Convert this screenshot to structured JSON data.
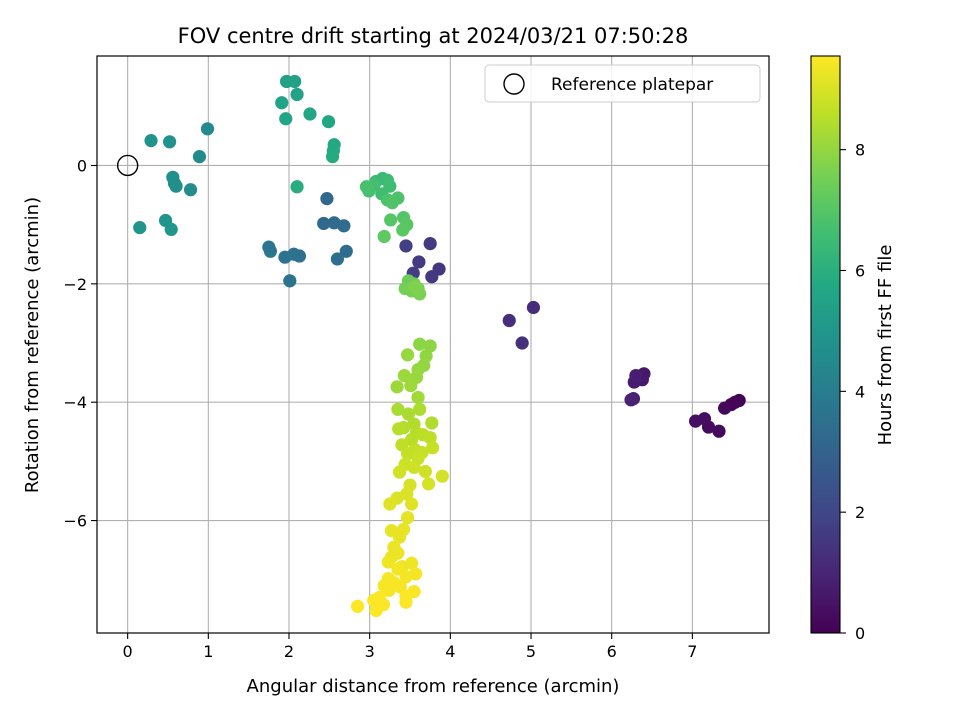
{
  "chart_data": {
    "type": "scatter",
    "title": "FOV centre drift starting at 2024/03/21 07:50:28",
    "xlabel": "Angular distance from reference (arcmin)",
    "ylabel": "Rotation from reference (arcmin)",
    "colorbar_label": "Hours from first FF file",
    "colormap": "viridis",
    "xlim": [
      -0.38,
      7.95
    ],
    "ylim": [
      -7.9,
      1.85
    ],
    "clim": [
      0,
      9.55
    ],
    "xticks": [
      "0",
      "1",
      "2",
      "3",
      "4",
      "5",
      "6",
      "7"
    ],
    "yticks": [
      "−6",
      "−4",
      "−2",
      "0"
    ],
    "cticks": [
      "0",
      "2",
      "4",
      "6",
      "8"
    ],
    "grid": true,
    "legend": {
      "placement": "top-right",
      "entries": [
        "Reference platepar"
      ]
    },
    "reference_point": {
      "x": 0,
      "y": 0
    },
    "points": [
      [
        7.58,
        -3.97,
        0.05
      ],
      [
        7.53,
        -4.0,
        0.1
      ],
      [
        7.48,
        -4.04,
        0.15
      ],
      [
        7.4,
        -4.1,
        0.2
      ],
      [
        7.33,
        -4.49,
        0.25
      ],
      [
        7.2,
        -4.42,
        0.3
      ],
      [
        7.15,
        -4.28,
        0.35
      ],
      [
        7.04,
        -4.32,
        0.4
      ],
      [
        6.38,
        -3.62,
        0.6
      ],
      [
        6.4,
        -3.52,
        0.65
      ],
      [
        6.32,
        -3.6,
        0.7
      ],
      [
        6.28,
        -3.66,
        0.75
      ],
      [
        6.3,
        -3.55,
        0.8
      ],
      [
        6.27,
        -3.94,
        0.85
      ],
      [
        6.24,
        -3.96,
        0.9
      ],
      [
        5.03,
        -2.4,
        1.2
      ],
      [
        4.73,
        -2.62,
        1.25
      ],
      [
        4.89,
        -3.0,
        1.3
      ],
      [
        3.86,
        -1.75,
        1.5
      ],
      [
        3.77,
        -1.88,
        1.55
      ],
      [
        3.75,
        -1.32,
        1.6
      ],
      [
        3.61,
        -1.63,
        1.65
      ],
      [
        3.54,
        -1.82,
        1.7
      ],
      [
        3.45,
        -1.36,
        1.75
      ],
      [
        2.47,
        -0.56,
        3.2
      ],
      [
        2.43,
        -0.98,
        3.25
      ],
      [
        2.56,
        -0.97,
        3.3
      ],
      [
        2.68,
        -1.02,
        3.35
      ],
      [
        2.71,
        -1.45,
        3.4
      ],
      [
        2.6,
        -1.58,
        3.45
      ],
      [
        2.13,
        -1.53,
        3.5
      ],
      [
        2.06,
        -1.5,
        3.55
      ],
      [
        1.95,
        -1.55,
        3.6
      ],
      [
        2.01,
        -1.95,
        3.65
      ],
      [
        1.75,
        -1.38,
        3.7
      ],
      [
        1.77,
        -1.45,
        3.75
      ],
      [
        0.99,
        0.62,
        4.5
      ],
      [
        0.89,
        0.15,
        4.55
      ],
      [
        0.78,
        -0.41,
        4.6
      ],
      [
        0.58,
        -0.3,
        4.65
      ],
      [
        0.6,
        -0.35,
        4.7
      ],
      [
        0.56,
        -0.2,
        4.75
      ],
      [
        0.52,
        0.4,
        4.8
      ],
      [
        0.29,
        0.42,
        4.85
      ],
      [
        0.15,
        -1.05,
        4.9
      ],
      [
        0.47,
        -0.93,
        4.95
      ],
      [
        0.54,
        -1.08,
        5.0
      ],
      [
        1.97,
        1.42,
        5.4
      ],
      [
        2.07,
        1.42,
        5.45
      ],
      [
        2.1,
        1.2,
        5.5
      ],
      [
        1.91,
        1.06,
        5.55
      ],
      [
        1.96,
        0.79,
        5.6
      ],
      [
        2.26,
        0.87,
        5.65
      ],
      [
        2.49,
        0.74,
        5.7
      ],
      [
        2.56,
        0.35,
        5.75
      ],
      [
        2.55,
        0.25,
        5.8
      ],
      [
        2.54,
        0.15,
        5.85
      ],
      [
        2.1,
        -0.36,
        5.9
      ],
      [
        3.08,
        -0.27,
        6.4
      ],
      [
        3.16,
        -0.22,
        6.45
      ],
      [
        3.22,
        -0.25,
        6.5
      ],
      [
        3.25,
        -0.35,
        6.55
      ],
      [
        3.15,
        -0.48,
        6.6
      ],
      [
        3.05,
        -0.33,
        6.65
      ],
      [
        2.99,
        -0.43,
        6.7
      ],
      [
        2.96,
        -0.36,
        6.75
      ],
      [
        3.22,
        -0.58,
        6.8
      ],
      [
        3.35,
        -0.55,
        6.85
      ],
      [
        3.28,
        -0.63,
        6.9
      ],
      [
        3.42,
        -0.88,
        6.95
      ],
      [
        3.26,
        -0.92,
        7.0
      ],
      [
        3.46,
        -1.0,
        7.05
      ],
      [
        3.41,
        -1.09,
        7.1
      ],
      [
        3.18,
        -1.2,
        7.15
      ],
      [
        3.48,
        -1.95,
        7.4
      ],
      [
        3.55,
        -2.0,
        7.45
      ],
      [
        3.44,
        -2.08,
        7.5
      ],
      [
        3.52,
        -2.12,
        7.55
      ],
      [
        3.6,
        -2.08,
        7.6
      ],
      [
        3.62,
        -2.17,
        7.65
      ],
      [
        3.56,
        -2.05,
        7.7
      ],
      [
        3.62,
        -3.02,
        7.9
      ],
      [
        3.75,
        -3.05,
        7.93
      ],
      [
        3.7,
        -3.22,
        7.96
      ],
      [
        3.67,
        -3.38,
        7.99
      ],
      [
        3.6,
        -3.45,
        8.02
      ],
      [
        3.47,
        -3.2,
        8.05
      ],
      [
        3.58,
        -3.58,
        8.08
      ],
      [
        3.43,
        -3.55,
        8.11
      ],
      [
        3.34,
        -3.74,
        8.14
      ],
      [
        3.51,
        -3.72,
        8.17
      ],
      [
        3.6,
        -3.92,
        8.2
      ],
      [
        3.35,
        -4.12,
        8.3
      ],
      [
        3.48,
        -4.2,
        8.33
      ],
      [
        3.62,
        -4.12,
        8.36
      ],
      [
        3.77,
        -4.35,
        8.39
      ],
      [
        3.55,
        -4.37,
        8.42
      ],
      [
        3.42,
        -4.43,
        8.45
      ],
      [
        3.58,
        -4.52,
        8.48
      ],
      [
        3.36,
        -4.45,
        8.51
      ],
      [
        3.52,
        -4.63,
        8.54
      ],
      [
        3.66,
        -4.55,
        8.57
      ],
      [
        3.75,
        -4.6,
        8.6
      ],
      [
        3.4,
        -4.72,
        8.63
      ],
      [
        3.56,
        -4.8,
        8.66
      ],
      [
        3.47,
        -4.87,
        8.69
      ],
      [
        3.65,
        -4.85,
        8.72
      ],
      [
        3.78,
        -4.77,
        8.75
      ],
      [
        3.6,
        -4.95,
        8.78
      ],
      [
        3.44,
        -5.05,
        8.81
      ],
      [
        3.55,
        -5.1,
        8.84
      ],
      [
        3.69,
        -5.17,
        8.87
      ],
      [
        3.37,
        -5.18,
        8.9
      ],
      [
        3.9,
        -5.25,
        8.93
      ],
      [
        3.73,
        -5.38,
        8.96
      ],
      [
        3.5,
        -5.4,
        8.99
      ],
      [
        3.46,
        -5.55,
        9.02
      ],
      [
        3.34,
        -5.62,
        9.05
      ],
      [
        3.52,
        -5.72,
        9.08
      ],
      [
        3.25,
        -5.72,
        9.11
      ],
      [
        3.47,
        -5.95,
        9.14
      ],
      [
        3.42,
        -6.15,
        9.2
      ],
      [
        3.27,
        -6.17,
        9.22
      ],
      [
        3.37,
        -6.28,
        9.24
      ],
      [
        3.3,
        -6.45,
        9.26
      ],
      [
        3.35,
        -6.55,
        9.28
      ],
      [
        3.27,
        -6.62,
        9.3
      ],
      [
        3.23,
        -6.7,
        9.32
      ],
      [
        3.4,
        -6.78,
        9.34
      ],
      [
        3.52,
        -6.72,
        9.36
      ],
      [
        3.35,
        -6.82,
        9.38
      ],
      [
        3.45,
        -6.95,
        9.4
      ],
      [
        3.57,
        -6.9,
        9.42
      ],
      [
        3.23,
        -6.98,
        9.44
      ],
      [
        3.3,
        -7.05,
        9.45
      ],
      [
        3.18,
        -7.1,
        9.46
      ],
      [
        3.38,
        -7.12,
        9.47
      ],
      [
        3.24,
        -7.18,
        9.48
      ],
      [
        3.55,
        -7.2,
        9.49
      ],
      [
        3.45,
        -7.28,
        9.5
      ],
      [
        3.12,
        -7.3,
        9.5
      ],
      [
        3.05,
        -7.35,
        9.51
      ],
      [
        3.17,
        -7.42,
        9.52
      ],
      [
        3.45,
        -7.38,
        9.52
      ],
      [
        2.85,
        -7.45,
        9.53
      ],
      [
        3.08,
        -7.52,
        9.54
      ]
    ]
  }
}
